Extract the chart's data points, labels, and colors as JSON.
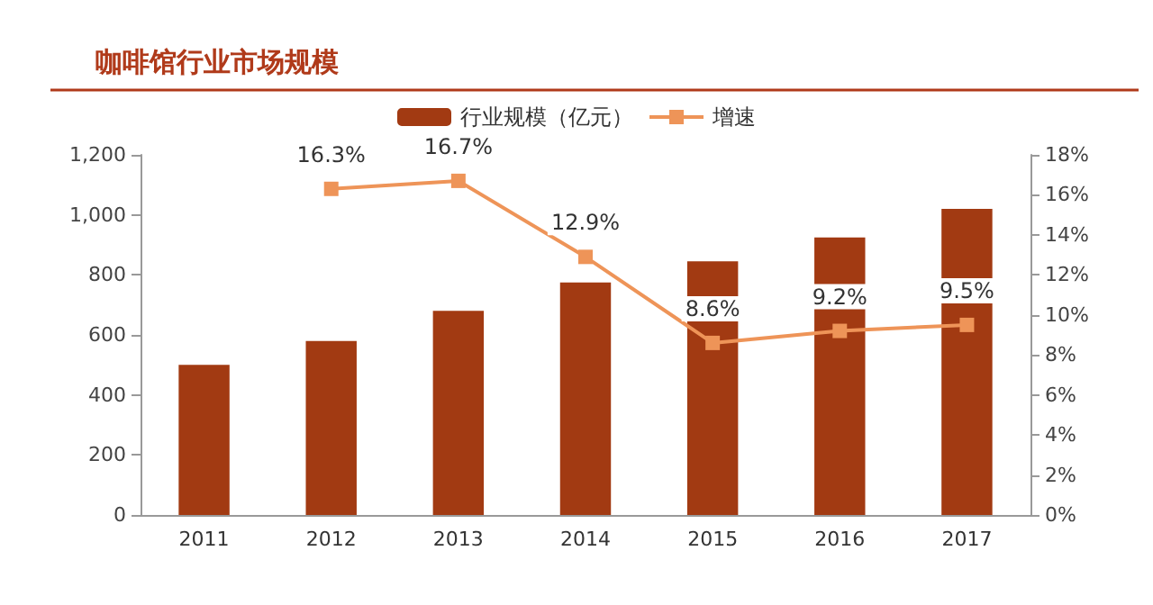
{
  "chart_data": {
    "type": "bar",
    "title": "咖啡馆行业市场规模",
    "categories": [
      "2011",
      "2012",
      "2013",
      "2014",
      "2015",
      "2016",
      "2017"
    ],
    "series": [
      {
        "name": "行业规模（亿元）",
        "color": "#a23a12",
        "values": [
          500,
          580,
          680,
          775,
          845,
          925,
          1020
        ]
      },
      {
        "name": "增速",
        "type": "line",
        "axis": "y2",
        "color": "#ee9458",
        "marker": "square",
        "values": [
          null,
          16.3,
          16.7,
          12.9,
          8.6,
          9.2,
          9.5
        ],
        "value_labels": [
          null,
          "16.3%",
          "16.7%",
          "12.9%",
          "8.6%",
          "9.2%",
          "9.5%"
        ]
      }
    ],
    "ylim": [
      0,
      1200
    ],
    "yticks": [
      {
        "value": 0,
        "label": "0"
      },
      {
        "value": 200,
        "label": "200"
      },
      {
        "value": 400,
        "label": "400"
      },
      {
        "value": 600,
        "label": "600"
      },
      {
        "value": 800,
        "label": "800"
      },
      {
        "value": 1000,
        "label": "1,000"
      },
      {
        "value": 1200,
        "label": "1,200"
      }
    ],
    "y2lim": [
      0,
      18
    ],
    "y2ticks": [
      {
        "value": 0,
        "label": "0%"
      },
      {
        "value": 2,
        "label": "2%"
      },
      {
        "value": 4,
        "label": "4%"
      },
      {
        "value": 6,
        "label": "6%"
      },
      {
        "value": 8,
        "label": "8%"
      },
      {
        "value": 10,
        "label": "10%"
      },
      {
        "value": 12,
        "label": "12%"
      },
      {
        "value": 14,
        "label": "14%"
      },
      {
        "value": 16,
        "label": "16%"
      },
      {
        "value": 18,
        "label": "18%"
      }
    ],
    "grid": false,
    "legend": "top"
  }
}
